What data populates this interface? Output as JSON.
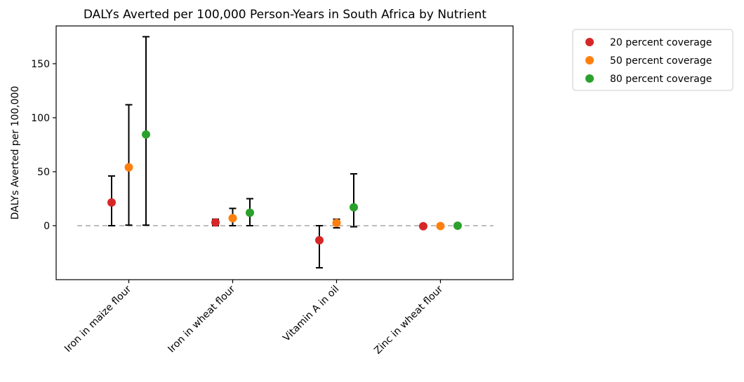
{
  "chart_data": {
    "type": "scatter",
    "title": "DALYs Averted per 100,000 Person-Years in South Africa by Nutrient",
    "xlabel": "",
    "ylabel": "DALYs Averted per 100,000",
    "ylim": [
      -50,
      185
    ],
    "yticks": [
      0,
      50,
      100,
      150
    ],
    "grid": false,
    "legend_position": "upper-right-outside",
    "reference_line": 0,
    "categories": [
      "Iron in maize flour",
      "Iron in wheat flour",
      "Vitamin A in oil",
      "Zinc in wheat flour"
    ],
    "series": [
      {
        "name": "20 percent coverage",
        "color": "#d62728",
        "values": [
          21.5,
          3,
          -13.5,
          -0.5
        ],
        "lower": [
          0,
          0,
          -39,
          -1
        ],
        "upper": [
          46,
          6,
          0,
          0
        ]
      },
      {
        "name": "50 percent coverage",
        "color": "#ff7f0e",
        "values": [
          54,
          7,
          2.5,
          -0.3
        ],
        "lower": [
          0.5,
          0,
          -2,
          -1
        ],
        "upper": [
          112,
          16,
          6,
          0.5
        ]
      },
      {
        "name": "80 percent coverage",
        "color": "#2ca02c",
        "values": [
          84.5,
          12,
          17,
          0
        ],
        "lower": [
          0.5,
          0,
          -1,
          0
        ],
        "upper": [
          175,
          25,
          48,
          0
        ]
      }
    ]
  }
}
